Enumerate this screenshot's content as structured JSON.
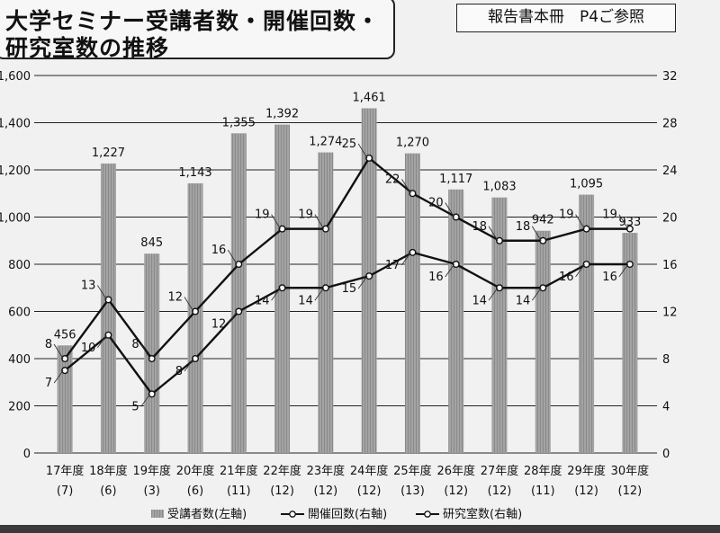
{
  "header": {
    "title_line1": "大学セミナー受講者数・開催回数・",
    "title_line2": "研究室数の推移",
    "reference": "報告書本冊　P4ご参照"
  },
  "chart_data": {
    "type": "bar",
    "categories": [
      "17年度",
      "18年度",
      "19年度",
      "20年度",
      "21年度",
      "22年度",
      "23年度",
      "24年度",
      "25年度",
      "26年度",
      "27年度",
      "28年度",
      "29年度",
      "30年度"
    ],
    "sub_labels": [
      "(7)",
      "(6)",
      "(3)",
      "(6)",
      "(11)",
      "(12)",
      "(12)",
      "(12)",
      "(13)",
      "(12)",
      "(12)",
      "(11)",
      "(12)",
      "(12)"
    ],
    "series": [
      {
        "name": "受講者数(左軸)",
        "type": "bar",
        "axis": "left",
        "values": [
          456,
          1227,
          845,
          1143,
          1355,
          1392,
          1274,
          1461,
          1270,
          1117,
          1083,
          942,
          1095,
          933
        ],
        "labels": [
          "456",
          "1,227",
          "845",
          "1,143",
          "1,355",
          "1,392",
          "1,274",
          "1,461",
          "1,270",
          "1,117",
          "1,083",
          "942",
          "1,095",
          "933"
        ]
      },
      {
        "name": "開催回数(右軸)",
        "type": "line",
        "axis": "right",
        "values": [
          8,
          13,
          8,
          12,
          16,
          19,
          19,
          25,
          22,
          20,
          18,
          18,
          19,
          19
        ]
      },
      {
        "name": "研究室数(右軸)",
        "type": "line",
        "axis": "right",
        "values": [
          7,
          10,
          5,
          8,
          12,
          14,
          14,
          15,
          17,
          16,
          14,
          14,
          16,
          16
        ]
      }
    ],
    "left_axis": {
      "min": 0,
      "max": 1600,
      "ticks": [
        "0",
        "200",
        "400",
        "600",
        "800",
        "1,000",
        "1,200",
        "1,400",
        "1,600"
      ]
    },
    "right_axis": {
      "min": 0,
      "max": 32,
      "ticks": [
        "0",
        "4",
        "8",
        "12",
        "16",
        "20",
        "24",
        "28",
        "32"
      ]
    },
    "grid": true,
    "legend_position": "bottom",
    "colors": {
      "bar": "#9a9a9a",
      "line": "#111111"
    }
  }
}
